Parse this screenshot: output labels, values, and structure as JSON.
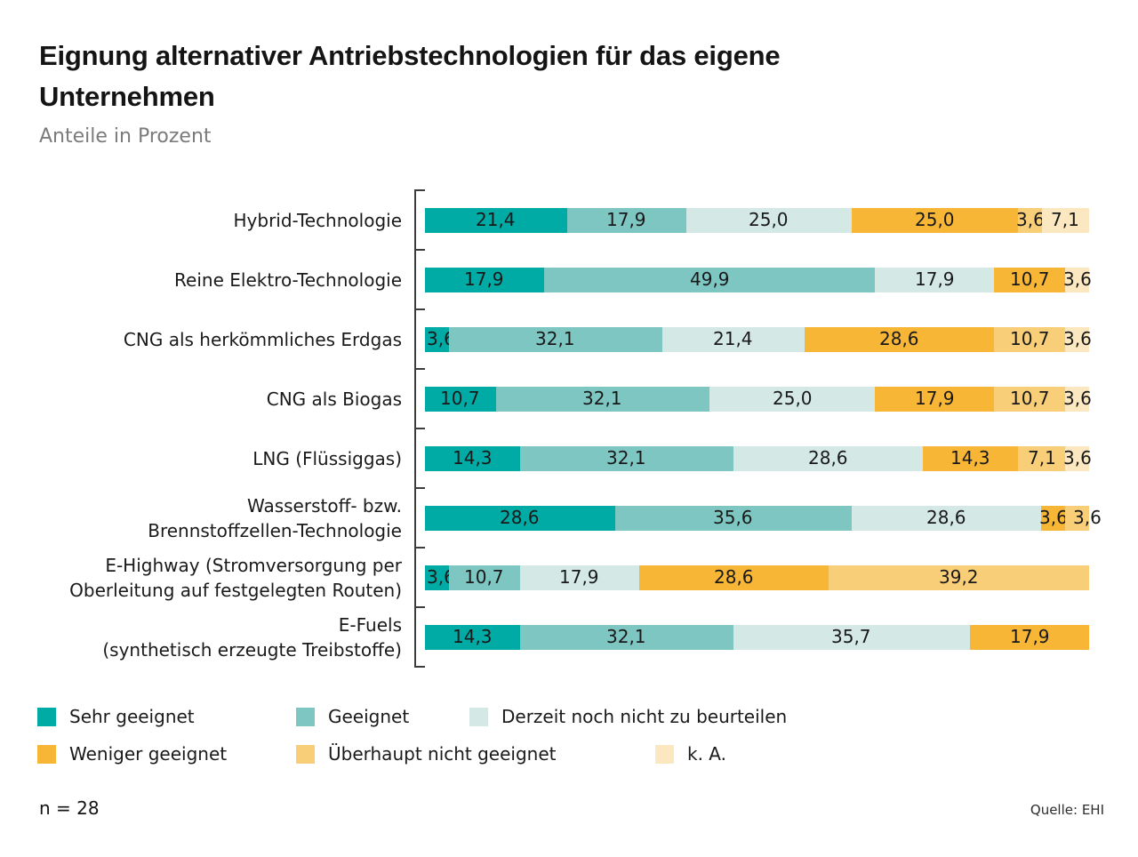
{
  "page": {
    "title_lines": [
      "Eignung alternativer Antriebstechnologien für das eigene",
      "Unternehmen"
    ],
    "subtitle": "Anteile in Prozent",
    "sample_note": "n = 28",
    "source": "Quelle: EHI"
  },
  "colors": {
    "sehr_geeignet": "#00aba6",
    "geeignet": "#7dc6c1",
    "derzeit_nicht_beurteilbar": "#d4e9e6",
    "weniger_geeignet": "#f8b637",
    "ueberhaupt_nicht_geeignet": "#f9ce79",
    "keine_angabe": "#fbe8c1",
    "axis": "#3d3d3d"
  },
  "chart_data": {
    "type": "bar",
    "orientation": "horizontal-stacked",
    "title": "Eignung alternativer Antriebstechnologien für das eigene Unternehmen",
    "subtitle": "Anteile in Prozent",
    "unit": "percent",
    "decimal_separator": ",",
    "xlim": [
      0,
      100
    ],
    "grid": false,
    "legend_position": "bottom",
    "categories": [
      {
        "label": "Hybrid-Technologie",
        "lines": [
          "Hybrid-Technologie"
        ]
      },
      {
        "label": "Reine Elektro-Technologie",
        "lines": [
          "Reine Elektro-Technologie"
        ]
      },
      {
        "label": "CNG als herkömmliches Erdgas",
        "lines": [
          "CNG als herkömmliches Erdgas"
        ]
      },
      {
        "label": "CNG als Biogas",
        "lines": [
          "CNG als Biogas"
        ]
      },
      {
        "label": "LNG (Flüssiggas)",
        "lines": [
          "LNG (Flüssiggas)"
        ]
      },
      {
        "label": "Wasserstoff- bzw. Brennstoffzellen-Technologie",
        "lines": [
          "Wasserstoff- bzw.",
          "Brennstoffzellen-Technologie"
        ]
      },
      {
        "label": "E-Highway (Stromversorgung per Oberleitung auf festgelegten Routen)",
        "lines": [
          "E-Highway (Stromversorgung per",
          "Oberleitung auf festgelegten Routen)"
        ]
      },
      {
        "label": "E-Fuels (synthetisch erzeugte Treibstoffe)",
        "lines": [
          "E-Fuels",
          "(synthetisch erzeugte Treibstoffe)"
        ]
      }
    ],
    "series": [
      {
        "name": "Sehr geeignet",
        "color": "#00aba6",
        "values": [
          21.4,
          17.9,
          3.6,
          10.7,
          14.3,
          28.6,
          3.6,
          14.3
        ]
      },
      {
        "name": "Geeignet",
        "color": "#7dc6c1",
        "values": [
          17.9,
          49.9,
          32.1,
          32.1,
          32.1,
          35.6,
          10.7,
          32.1
        ]
      },
      {
        "name": "Derzeit noch nicht zu beurteilen",
        "color": "#d4e9e6",
        "values": [
          25.0,
          17.9,
          21.4,
          25.0,
          28.6,
          28.6,
          17.9,
          35.7
        ]
      },
      {
        "name": "Weniger geeignet",
        "color": "#f8b637",
        "values": [
          25.0,
          10.7,
          28.6,
          17.9,
          14.3,
          3.6,
          28.6,
          17.9
        ]
      },
      {
        "name": "Überhaupt nicht geeignet",
        "color": "#f9ce79",
        "values": [
          3.6,
          0,
          10.7,
          10.7,
          7.1,
          3.6,
          39.2,
          0
        ]
      },
      {
        "name": "k. A.",
        "color": "#fbe8c1",
        "values": [
          7.1,
          3.6,
          3.6,
          3.6,
          3.6,
          0,
          0,
          0
        ]
      }
    ],
    "legend": [
      {
        "label": "Sehr geeignet",
        "color": "#00aba6"
      },
      {
        "label": "Geeignet",
        "color": "#7dc6c1"
      },
      {
        "label": "Derzeit noch nicht zu beurteilen",
        "color": "#d4e9e6"
      },
      {
        "label": "Weniger geeignet",
        "color": "#f8b637"
      },
      {
        "label": "Überhaupt nicht geeignet",
        "color": "#f9ce79"
      },
      {
        "label": "k. A.",
        "color": "#fbe8c1"
      }
    ]
  }
}
